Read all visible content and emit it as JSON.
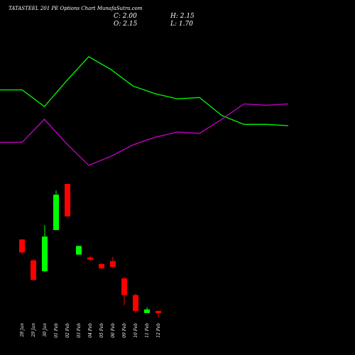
{
  "chart_data": {
    "type": "candlestick",
    "title": "TATASTEEL 201 PE Options Chart MunafaSutra.com",
    "ohlc_labels": {
      "close": "C: 2.00",
      "high": "H: 2.15",
      "open": "O: 2.15",
      "low": "L: 1.70"
    },
    "categories": [
      "28 Jan",
      "29 Jan",
      "30 Jan",
      "01 Feb",
      "02 Feb",
      "03 Feb",
      "04 Feb",
      "05 Feb",
      "06 Feb",
      "09 Feb",
      "10 Feb",
      "11 Feb",
      "12 Feb"
    ],
    "open": [
      7.1,
      5.65,
      4.9,
      7.75,
      10.95,
      6.05,
      5.85,
      5.4,
      5.6,
      4.4,
      3.25,
      2.0,
      2.15
    ],
    "high": [
      7.1,
      5.75,
      8.1,
      10.5,
      10.95,
      6.65,
      5.95,
      5.45,
      5.9,
      4.5,
      3.35,
      2.4,
      2.15
    ],
    "low": [
      6.1,
      4.2,
      4.85,
      7.75,
      8.65,
      6.05,
      5.6,
      5.05,
      5.15,
      2.55,
      2.0,
      2.0,
      1.7
    ],
    "close": [
      6.2,
      4.3,
      7.3,
      10.2,
      8.7,
      6.65,
      5.7,
      5.1,
      5.2,
      3.25,
      2.15,
      2.25,
      2.0
    ],
    "up_color": "#00ff00",
    "down_color": "#ff0000",
    "ylim": [
      1.7,
      10.95
    ],
    "lines": {
      "x": [
        0,
        1,
        2,
        3,
        4,
        5,
        6,
        7,
        8,
        9,
        10,
        11,
        12,
        13
      ],
      "xlim": [
        0,
        13
      ],
      "ylim": [
        0,
        100
      ],
      "series": [
        {
          "color": "#00ff00",
          "values": [
            63,
            63,
            50,
            70,
            89,
            79,
            66,
            60,
            56,
            57,
            43,
            36,
            36,
            35
          ]
        },
        {
          "color": "#cc00cc",
          "values": [
            22,
            22,
            40,
            21,
            4,
            11,
            20,
            26,
            30,
            29,
            40,
            52,
            51,
            52
          ]
        }
      ]
    }
  }
}
